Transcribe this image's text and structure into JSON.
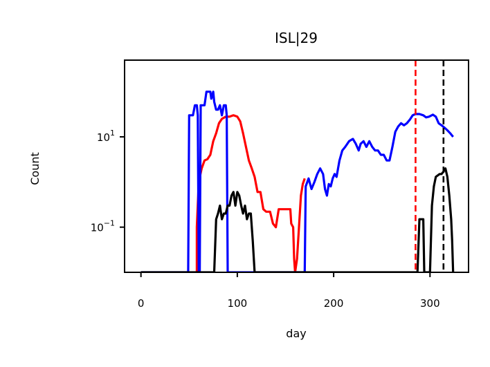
{
  "chart_data": {
    "type": "line",
    "title": "ISL|29",
    "xlabel": "day",
    "ylabel": "Count",
    "xlim": [
      -17,
      340
    ],
    "ylim": [
      0.01,
      500
    ],
    "yscale": "log",
    "x_ticks": [
      0,
      100,
      200,
      300
    ],
    "y_ticks": [
      {
        "value": 0.1,
        "base": "10",
        "exp": "−1"
      },
      {
        "value": 10,
        "base": "10",
        "exp": "1"
      }
    ],
    "grid": false,
    "vlines": [
      {
        "x": 285,
        "color": "#ff0000",
        "style": "dashed"
      },
      {
        "x": 314,
        "color": "#000000",
        "style": "dashed"
      }
    ],
    "series": [
      {
        "color": "#ff0000",
        "points": [
          [
            58,
            0.01
          ],
          [
            58,
            0.1
          ],
          [
            60,
            1
          ],
          [
            63,
            2
          ],
          [
            66,
            3
          ],
          [
            69,
            3.2
          ],
          [
            72,
            4
          ],
          [
            75,
            8
          ],
          [
            78,
            12
          ],
          [
            81,
            20
          ],
          [
            84,
            25
          ],
          [
            88,
            28
          ],
          [
            92,
            28
          ],
          [
            96,
            30
          ],
          [
            100,
            28
          ],
          [
            103,
            22
          ],
          [
            106,
            12
          ],
          [
            109,
            6
          ],
          [
            112,
            3
          ],
          [
            115,
            2
          ],
          [
            118,
            1.3
          ],
          [
            121,
            0.6
          ],
          [
            124,
            0.6
          ],
          [
            127,
            0.25
          ],
          [
            130,
            0.22
          ],
          [
            134,
            0.22
          ],
          [
            137,
            0.12
          ],
          [
            140,
            0.1
          ],
          [
            143,
            0.25
          ],
          [
            152,
            0.25
          ],
          [
            155,
            0.25
          ],
          [
            156,
            0.12
          ],
          [
            158,
            0.1
          ],
          [
            159,
            0.02
          ],
          [
            160,
            0.01
          ],
          [
            162,
            0.02
          ],
          [
            164,
            0.1
          ],
          [
            166,
            0.5
          ],
          [
            168,
            0.9
          ],
          [
            170,
            1.2
          ]
        ]
      },
      {
        "color": "#0000ff",
        "points": [
          [
            0,
            0.01
          ],
          [
            49,
            0.01
          ],
          [
            50,
            30
          ],
          [
            54,
            30
          ],
          [
            56,
            50
          ],
          [
            58,
            50
          ],
          [
            59,
            30
          ],
          [
            60,
            0.01
          ],
          [
            61,
            0.01
          ],
          [
            62,
            50
          ],
          [
            66,
            50
          ],
          [
            68,
            100
          ],
          [
            72,
            100
          ],
          [
            73,
            70
          ],
          [
            75,
            100
          ],
          [
            76,
            60
          ],
          [
            78,
            40
          ],
          [
            80,
            40
          ],
          [
            82,
            50
          ],
          [
            84,
            30
          ],
          [
            86,
            50
          ],
          [
            88,
            50
          ],
          [
            89,
            30
          ],
          [
            90,
            0.01
          ],
          [
            170,
            0.01
          ],
          [
            171,
            0.8
          ],
          [
            174,
            1.2
          ],
          [
            177,
            0.7
          ],
          [
            180,
            1.0
          ],
          [
            183,
            1.5
          ],
          [
            186,
            2.0
          ],
          [
            189,
            1.5
          ],
          [
            191,
            0.7
          ],
          [
            193,
            0.5
          ],
          [
            195,
            0.9
          ],
          [
            197,
            0.8
          ],
          [
            199,
            1.2
          ],
          [
            201,
            1.5
          ],
          [
            203,
            1.3
          ],
          [
            206,
            3
          ],
          [
            209,
            5
          ],
          [
            212,
            6
          ],
          [
            216,
            8
          ],
          [
            220,
            9
          ],
          [
            223,
            7
          ],
          [
            226,
            5
          ],
          [
            228,
            7
          ],
          [
            231,
            8
          ],
          [
            234,
            6
          ],
          [
            237,
            8
          ],
          [
            240,
            6
          ],
          [
            243,
            5
          ],
          [
            246,
            5
          ],
          [
            249,
            4
          ],
          [
            252,
            4
          ],
          [
            255,
            3
          ],
          [
            258,
            3
          ],
          [
            261,
            6
          ],
          [
            264,
            13
          ],
          [
            267,
            17
          ],
          [
            270,
            20
          ],
          [
            273,
            18
          ],
          [
            276,
            20
          ],
          [
            279,
            24
          ],
          [
            282,
            30
          ],
          [
            285,
            32
          ],
          [
            289,
            32
          ],
          [
            293,
            30
          ],
          [
            296,
            27
          ],
          [
            299,
            28
          ],
          [
            303,
            31
          ],
          [
            306,
            28
          ],
          [
            309,
            20
          ],
          [
            312,
            18
          ],
          [
            315,
            16
          ],
          [
            318,
            14
          ],
          [
            321,
            12
          ],
          [
            324,
            10
          ]
        ]
      },
      {
        "color": "#000000",
        "points": [
          [
            0,
            0.01
          ],
          [
            76,
            0.01
          ],
          [
            78,
            0.15
          ],
          [
            80,
            0.2
          ],
          [
            82,
            0.3
          ],
          [
            84,
            0.15
          ],
          [
            86,
            0.2
          ],
          [
            88,
            0.2
          ],
          [
            90,
            0.3
          ],
          [
            92,
            0.3
          ],
          [
            94,
            0.5
          ],
          [
            96,
            0.6
          ],
          [
            98,
            0.3
          ],
          [
            100,
            0.6
          ],
          [
            102,
            0.5
          ],
          [
            104,
            0.3
          ],
          [
            106,
            0.2
          ],
          [
            108,
            0.3
          ],
          [
            110,
            0.15
          ],
          [
            112,
            0.2
          ],
          [
            114,
            0.2
          ],
          [
            116,
            0.05
          ],
          [
            118,
            0.01
          ],
          [
            287,
            0.01
          ],
          [
            289,
            0.15
          ],
          [
            293,
            0.15
          ],
          [
            294,
            0.01
          ],
          [
            300,
            0.01
          ],
          [
            302,
            0.3
          ],
          [
            304,
            0.8
          ],
          [
            306,
            1.3
          ],
          [
            310,
            1.5
          ],
          [
            312,
            1.5
          ],
          [
            314,
            1.7
          ],
          [
            316,
            2.0
          ],
          [
            318,
            1.3
          ],
          [
            320,
            0.5
          ],
          [
            322,
            0.15
          ],
          [
            323,
            0.05
          ],
          [
            324,
            0.01
          ]
        ]
      }
    ]
  }
}
